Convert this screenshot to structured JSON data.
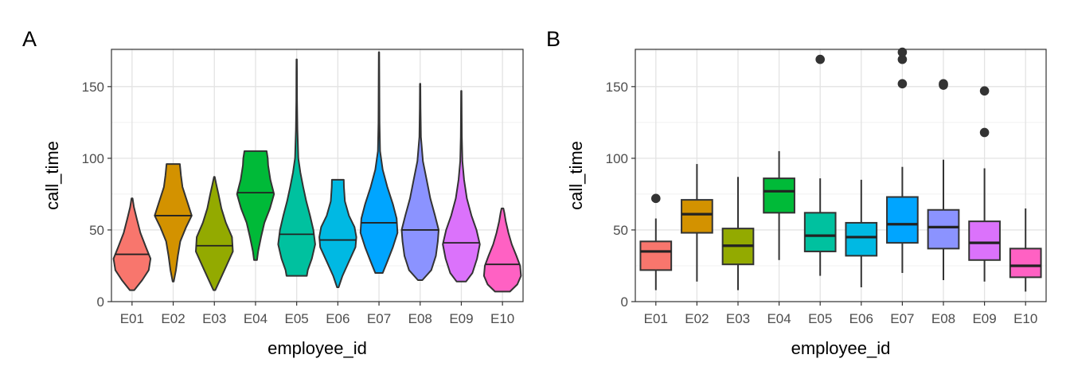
{
  "chart_data": [
    {
      "panel_tag": "A",
      "type": "violin",
      "xlabel": "employee_id",
      "ylabel": "call_time",
      "ylim": [
        0,
        176
      ],
      "yticks": [
        "0",
        "50",
        "100",
        "150"
      ],
      "grid": true,
      "categories": [
        "E01",
        "E02",
        "E03",
        "E04",
        "E05",
        "E06",
        "E07",
        "E08",
        "E09",
        "E10"
      ],
      "colors": [
        "#F8766D",
        "#D39200",
        "#93AA00",
        "#00BA38",
        "#00C19F",
        "#00B9E3",
        "#00A5FF",
        "#8B93FF",
        "#DB72FB",
        "#FF61C3"
      ],
      "series": [
        {
          "min": 8,
          "max": 72,
          "median": 33,
          "density": [
            [
              8,
              0.12
            ],
            [
              15,
              0.55
            ],
            [
              22,
              0.9
            ],
            [
              30,
              1
            ],
            [
              38,
              0.75
            ],
            [
              48,
              0.45
            ],
            [
              58,
              0.25
            ],
            [
              66,
              0.1
            ],
            [
              72,
              0.03
            ]
          ]
        },
        {
          "min": 14,
          "max": 96,
          "median": 60,
          "density": [
            [
              14,
              0.03
            ],
            [
              22,
              0.15
            ],
            [
              32,
              0.25
            ],
            [
              42,
              0.38
            ],
            [
              52,
              0.7
            ],
            [
              60,
              1
            ],
            [
              70,
              0.75
            ],
            [
              80,
              0.5
            ],
            [
              88,
              0.42
            ],
            [
              96,
              0.36
            ]
          ]
        },
        {
          "min": 8,
          "max": 87,
          "median": 39,
          "density": [
            [
              8,
              0.05
            ],
            [
              15,
              0.3
            ],
            [
              25,
              0.65
            ],
            [
              35,
              1
            ],
            [
              45,
              0.95
            ],
            [
              55,
              0.62
            ],
            [
              65,
              0.38
            ],
            [
              75,
              0.22
            ],
            [
              82,
              0.1
            ],
            [
              87,
              0.02
            ]
          ]
        },
        {
          "min": 29,
          "max": 105,
          "median": 76,
          "density": [
            [
              29,
              0.08
            ],
            [
              35,
              0.14
            ],
            [
              45,
              0.3
            ],
            [
              55,
              0.48
            ],
            [
              65,
              0.78
            ],
            [
              75,
              1
            ],
            [
              85,
              0.8
            ],
            [
              95,
              0.68
            ],
            [
              100,
              0.66
            ],
            [
              105,
              0.6
            ]
          ]
        },
        {
          "min": 18,
          "max": 169,
          "median": 47,
          "density": [
            [
              18,
              0.55
            ],
            [
              22,
              0.6
            ],
            [
              30,
              0.82
            ],
            [
              40,
              1
            ],
            [
              50,
              0.9
            ],
            [
              60,
              0.72
            ],
            [
              70,
              0.52
            ],
            [
              80,
              0.35
            ],
            [
              90,
              0.2
            ],
            [
              100,
              0.09
            ],
            [
              120,
              0.04
            ],
            [
              140,
              0.02
            ],
            [
              160,
              0.015
            ],
            [
              169,
              0.01
            ]
          ]
        },
        {
          "min": 10,
          "max": 85,
          "median": 43,
          "density": [
            [
              10,
              0.04
            ],
            [
              18,
              0.25
            ],
            [
              28,
              0.6
            ],
            [
              38,
              0.95
            ],
            [
              45,
              1
            ],
            [
              52,
              0.9
            ],
            [
              60,
              0.6
            ],
            [
              70,
              0.38
            ],
            [
              80,
              0.33
            ],
            [
              85,
              0.32
            ]
          ]
        },
        {
          "min": 20,
          "max": 174,
          "median": 55,
          "density": [
            [
              20,
              0.2
            ],
            [
              28,
              0.45
            ],
            [
              38,
              0.75
            ],
            [
              48,
              1
            ],
            [
              58,
              0.95
            ],
            [
              68,
              0.75
            ],
            [
              80,
              0.45
            ],
            [
              92,
              0.2
            ],
            [
              105,
              0.06
            ],
            [
              125,
              0.03
            ],
            [
              150,
              0.02
            ],
            [
              174,
              0.01
            ]
          ]
        },
        {
          "min": 15,
          "max": 152,
          "median": 50,
          "density": [
            [
              15,
              0.12
            ],
            [
              22,
              0.6
            ],
            [
              32,
              0.85
            ],
            [
              42,
              0.95
            ],
            [
              50,
              1
            ],
            [
              60,
              0.8
            ],
            [
              72,
              0.55
            ],
            [
              85,
              0.35
            ],
            [
              98,
              0.15
            ],
            [
              115,
              0.04
            ],
            [
              135,
              0.02
            ],
            [
              152,
              0.01
            ]
          ]
        },
        {
          "min": 14,
          "max": 147,
          "median": 41,
          "density": [
            [
              14,
              0.25
            ],
            [
              20,
              0.6
            ],
            [
              30,
              0.85
            ],
            [
              40,
              1
            ],
            [
              50,
              0.82
            ],
            [
              60,
              0.55
            ],
            [
              72,
              0.3
            ],
            [
              85,
              0.15
            ],
            [
              98,
              0.06
            ],
            [
              115,
              0.03
            ],
            [
              130,
              0.02
            ],
            [
              147,
              0.01
            ]
          ]
        },
        {
          "min": 7,
          "max": 65,
          "median": 26,
          "density": [
            [
              7,
              0.4
            ],
            [
              12,
              0.8
            ],
            [
              18,
              1
            ],
            [
              25,
              0.95
            ],
            [
              32,
              0.75
            ],
            [
              40,
              0.5
            ],
            [
              48,
              0.32
            ],
            [
              56,
              0.18
            ],
            [
              62,
              0.1
            ],
            [
              65,
              0.05
            ]
          ]
        }
      ]
    },
    {
      "panel_tag": "B",
      "type": "box",
      "xlabel": "employee_id",
      "ylabel": "call_time",
      "ylim": [
        0,
        176
      ],
      "yticks": [
        "0",
        "50",
        "100",
        "150"
      ],
      "grid": true,
      "categories": [
        "E01",
        "E02",
        "E03",
        "E04",
        "E05",
        "E06",
        "E07",
        "E08",
        "E09",
        "E10"
      ],
      "colors": [
        "#F8766D",
        "#D39200",
        "#93AA00",
        "#00BA38",
        "#00C19F",
        "#00B9E3",
        "#00A5FF",
        "#8B93FF",
        "#DB72FB",
        "#FF61C3"
      ],
      "series": [
        {
          "whisker_low": 8,
          "q1": 22,
          "median": 35,
          "q3": 42,
          "whisker_high": 58,
          "outliers": [
            72
          ]
        },
        {
          "whisker_low": 14,
          "q1": 48,
          "median": 61,
          "q3": 71,
          "whisker_high": 96,
          "outliers": []
        },
        {
          "whisker_low": 8,
          "q1": 26,
          "median": 39,
          "q3": 51,
          "whisker_high": 87,
          "outliers": []
        },
        {
          "whisker_low": 29,
          "q1": 62,
          "median": 77,
          "q3": 86,
          "whisker_high": 105,
          "outliers": []
        },
        {
          "whisker_low": 18,
          "q1": 35,
          "median": 46,
          "q3": 62,
          "whisker_high": 86,
          "outliers": [
            169
          ]
        },
        {
          "whisker_low": 10,
          "q1": 32,
          "median": 45,
          "q3": 55,
          "whisker_high": 85,
          "outliers": []
        },
        {
          "whisker_low": 20,
          "q1": 41,
          "median": 54,
          "q3": 73,
          "whisker_high": 94,
          "outliers": [
            152,
            169,
            174
          ]
        },
        {
          "whisker_low": 15,
          "q1": 37,
          "median": 52,
          "q3": 64,
          "whisker_high": 99,
          "outliers": [
            151,
            152
          ]
        },
        {
          "whisker_low": 14,
          "q1": 29,
          "median": 41,
          "q3": 56,
          "whisker_high": 93,
          "outliers": [
            118,
            147
          ]
        },
        {
          "whisker_low": 7,
          "q1": 17,
          "median": 25,
          "q3": 37,
          "whisker_high": 65,
          "outliers": []
        }
      ]
    }
  ]
}
